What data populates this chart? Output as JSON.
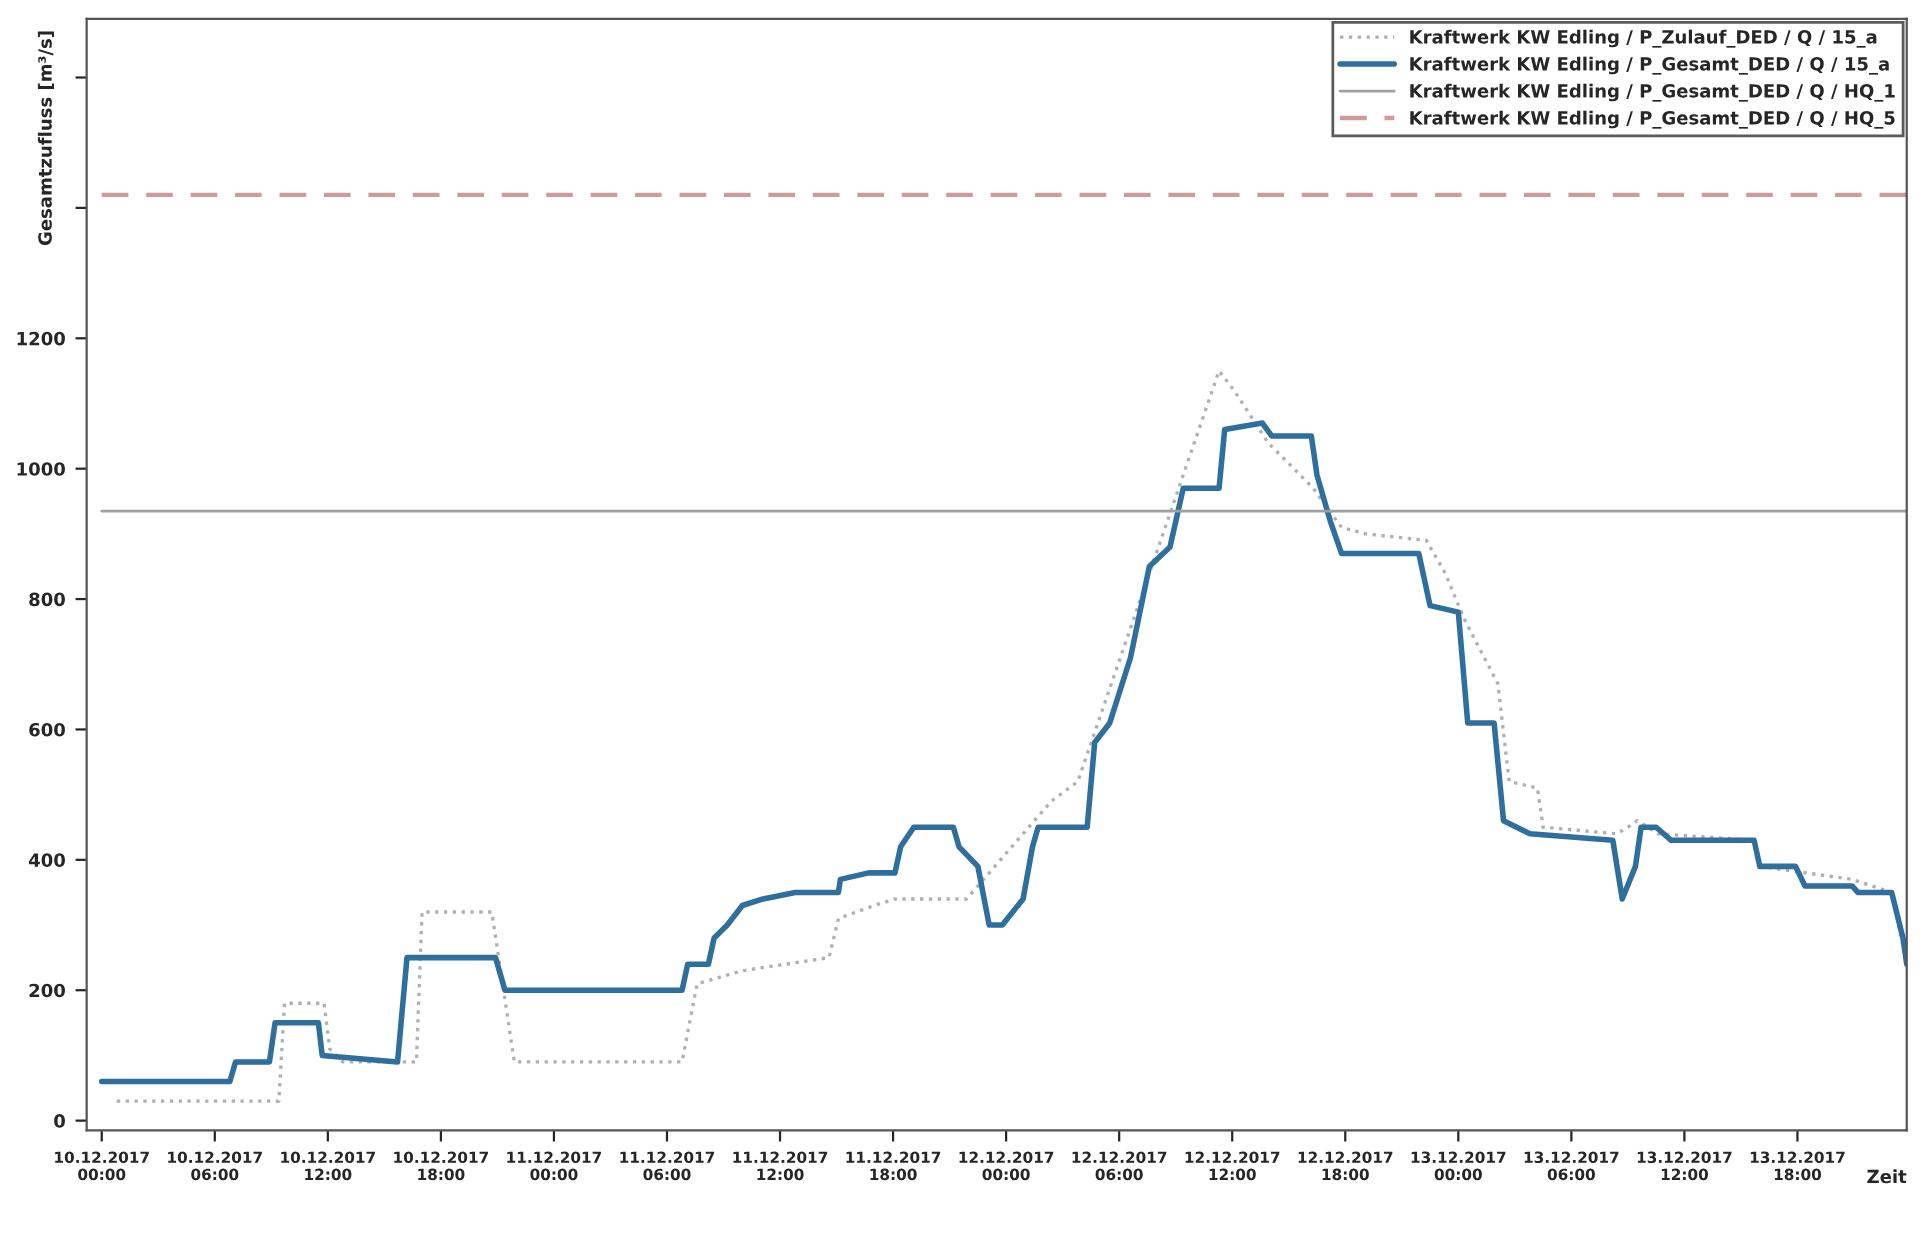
{
  "chart_data": {
    "type": "line",
    "ylabel": "Gesamtzufluss [m³/s]",
    "xlabel": "Zeit",
    "xlim": [
      "2017-12-09T23:12",
      "2017-12-13T23:48"
    ],
    "ylim": [
      -15,
      1690
    ],
    "xticks": [
      {
        "value": "2017-12-10T00:00",
        "label": "10.12.2017\n00:00"
      },
      {
        "value": "2017-12-10T06:00",
        "label": "10.12.2017\n06:00"
      },
      {
        "value": "2017-12-10T12:00",
        "label": "10.12.2017\n12:00"
      },
      {
        "value": "2017-12-10T18:00",
        "label": "10.12.2017\n18:00"
      },
      {
        "value": "2017-12-11T00:00",
        "label": "11.12.2017\n00:00"
      },
      {
        "value": "2017-12-11T06:00",
        "label": "11.12.2017\n06:00"
      },
      {
        "value": "2017-12-11T12:00",
        "label": "11.12.2017\n12:00"
      },
      {
        "value": "2017-12-11T18:00",
        "label": "11.12.2017\n18:00"
      },
      {
        "value": "2017-12-12T00:00",
        "label": "12.12.2017\n00:00"
      },
      {
        "value": "2017-12-12T06:00",
        "label": "12.12.2017\n06:00"
      },
      {
        "value": "2017-12-12T12:00",
        "label": "12.12.2017\n12:00"
      },
      {
        "value": "2017-12-12T18:00",
        "label": "12.12.2017\n18:00"
      },
      {
        "value": "2017-12-13T00:00",
        "label": "13.12.2017\n00:00"
      },
      {
        "value": "2017-12-13T06:00",
        "label": "13.12.2017\n06:00"
      },
      {
        "value": "2017-12-13T12:00",
        "label": "13.12.2017\n12:00"
      },
      {
        "value": "2017-12-13T18:00",
        "label": "13.12.2017\n18:00"
      }
    ],
    "yticks": [
      0,
      200,
      400,
      600,
      800,
      1000,
      1200,
      {
        "value": 1400,
        "label": null
      },
      {
        "value": 1600,
        "label": null
      }
    ],
    "grid": false,
    "legend": "top right",
    "series": [
      {
        "name": "Kraftwerk KW Edling / P_Zulauf_DED / Q / 15_a",
        "color": "#b0b0b0",
        "line_style": "dotted",
        "x": [
          "2017-12-10T00:48",
          "2017-12-10T09:24",
          "2017-12-10T09:42",
          "2017-12-10T11:48",
          "2017-12-10T12:06",
          "2017-12-10T12:48",
          "2017-12-10T16:42",
          "2017-12-10T17:00",
          "2017-12-10T20:42",
          "2017-12-10T21:54",
          "2017-12-11T06:48",
          "2017-12-11T07:36",
          "2017-12-11T10:00",
          "2017-12-11T14:36",
          "2017-12-11T15:06",
          "2017-12-11T17:00",
          "2017-12-11T18:06",
          "2017-12-11T21:54",
          "2017-12-12T02:24",
          "2017-12-12T03:48",
          "2017-12-12T11:18",
          "2017-12-12T12:06",
          "2017-12-12T13:54",
          "2017-12-12T16:18",
          "2017-12-12T17:48",
          "2017-12-12T19:06",
          "2017-12-12T22:18",
          "2017-12-12T23:18",
          "2017-12-13T00:18",
          "2017-12-13T02:06",
          "2017-12-13T02:42",
          "2017-12-13T04:12",
          "2017-12-13T04:30",
          "2017-12-13T08:24",
          "2017-12-13T09:00",
          "2017-12-13T09:30",
          "2017-12-13T10:36",
          "2017-12-13T15:42",
          "2017-12-13T16:00",
          "2017-12-13T20:54",
          "2017-12-13T23:00",
          "2017-12-13T23:48"
        ],
        "values": [
          30,
          30,
          180,
          180,
          110,
          90,
          90,
          320,
          320,
          90,
          90,
          210,
          230,
          250,
          310,
          330,
          340,
          340,
          490,
          520,
          1150,
          1120,
          1040,
          970,
          910,
          900,
          890,
          840,
          770,
          670,
          520,
          510,
          450,
          440,
          450,
          460,
          440,
          430,
          390,
          370,
          350,
          240
        ]
      },
      {
        "name": "Kraftwerk KW Edling / P_Gesamt_DED / Q / 15_a",
        "color": "#2e6f9e",
        "line_style": "solid",
        "x": [
          "2017-12-10T00:00",
          "2017-12-10T06:48",
          "2017-12-10T07:06",
          "2017-12-10T08:54",
          "2017-12-10T09:12",
          "2017-12-10T11:30",
          "2017-12-10T11:42",
          "2017-12-10T15:42",
          "2017-12-10T16:12",
          "2017-12-10T20:54",
          "2017-12-10T21:24",
          "2017-12-11T06:48",
          "2017-12-11T07:06",
          "2017-12-11T08:12",
          "2017-12-11T08:30",
          "2017-12-11T09:12",
          "2017-12-11T10:00",
          "2017-12-11T11:06",
          "2017-12-11T12:48",
          "2017-12-11T15:06",
          "2017-12-11T15:12",
          "2017-12-11T16:42",
          "2017-12-11T18:06",
          "2017-12-11T18:24",
          "2017-12-11T19:06",
          "2017-12-11T21:12",
          "2017-12-11T21:30",
          "2017-12-11T22:30",
          "2017-12-11T23:06",
          "2017-12-11T23:48",
          "2017-12-12T00:54",
          "2017-12-12T01:24",
          "2017-12-12T01:42",
          "2017-12-12T04:18",
          "2017-12-12T04:42",
          "2017-12-12T05:30",
          "2017-12-12T06:36",
          "2017-12-12T07:36",
          "2017-12-12T08:42",
          "2017-12-12T09:24",
          "2017-12-12T11:18",
          "2017-12-12T11:36",
          "2017-12-12T13:36",
          "2017-12-12T14:06",
          "2017-12-12T16:12",
          "2017-12-12T16:30",
          "2017-12-12T17:12",
          "2017-12-12T17:48",
          "2017-12-12T21:54",
          "2017-12-12T22:30",
          "2017-12-13T00:00",
          "2017-12-13T00:30",
          "2017-12-13T01:54",
          "2017-12-13T02:24",
          "2017-12-13T03:48",
          "2017-12-13T08:12",
          "2017-12-13T08:42",
          "2017-12-13T09:24",
          "2017-12-13T09:42",
          "2017-12-13T10:30",
          "2017-12-13T11:18",
          "2017-12-13T15:42",
          "2017-12-13T16:00",
          "2017-12-13T17:54",
          "2017-12-13T18:24",
          "2017-12-13T20:54",
          "2017-12-13T21:12",
          "2017-12-13T23:00",
          "2017-12-13T23:36",
          "2017-12-13T23:48"
        ],
        "values": [
          60,
          60,
          90,
          90,
          150,
          150,
          100,
          90,
          250,
          250,
          200,
          200,
          240,
          240,
          280,
          300,
          330,
          340,
          350,
          350,
          370,
          380,
          380,
          420,
          450,
          450,
          420,
          390,
          300,
          300,
          340,
          420,
          450,
          450,
          580,
          610,
          710,
          850,
          880,
          970,
          970,
          1060,
          1070,
          1050,
          1050,
          990,
          920,
          870,
          870,
          790,
          780,
          610,
          610,
          460,
          440,
          430,
          340,
          390,
          450,
          450,
          430,
          430,
          390,
          390,
          360,
          360,
          350,
          350,
          280,
          240
        ]
      },
      {
        "name": "Kraftwerk KW Edling / P_Gesamt_DED / Q / HQ_1",
        "color": "#a0a0a0",
        "line_style": "solid",
        "x": [
          "2017-12-10T00:00",
          "2017-12-13T23:48"
        ],
        "values": [
          935,
          935
        ]
      },
      {
        "name": "Kraftwerk KW Edling / P_Gesamt_DED / Q / HQ_5",
        "color": "#d09a9a",
        "line_style": "dashed",
        "x": [
          "2017-12-10T00:00",
          "2017-12-13T23:48"
        ],
        "values": [
          1420,
          1420
        ]
      }
    ]
  }
}
